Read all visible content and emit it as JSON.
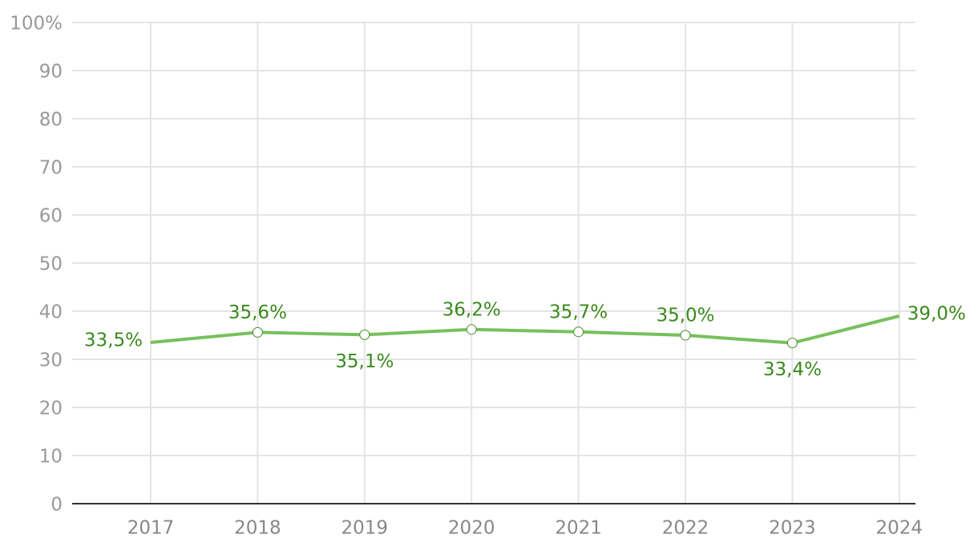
{
  "chart_data": {
    "type": "line",
    "categories": [
      "2017",
      "2018",
      "2019",
      "2020",
      "2021",
      "2022",
      "2023",
      "2024"
    ],
    "series": [
      {
        "color": "#77c05d",
        "values": [
          33.5,
          35.6,
          35.1,
          36.2,
          35.7,
          35.0,
          33.4,
          39.0
        ],
        "value_labels": [
          "33,5%",
          "35,6%",
          "35,1%",
          "36,2%",
          "35,7%",
          "35,0%",
          "33,4%",
          "39,0%"
        ]
      }
    ],
    "ylim": [
      0,
      100
    ],
    "yticks": [
      0,
      10,
      20,
      30,
      40,
      50,
      60,
      70,
      80,
      90,
      {
        "value": 100,
        "label": "100%"
      }
    ],
    "grid": true
  }
}
